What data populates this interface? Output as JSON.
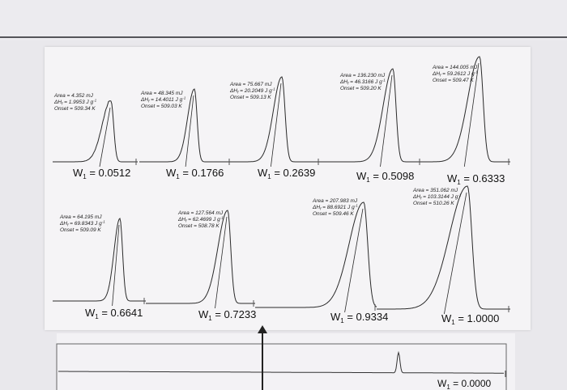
{
  "chart_data": {
    "type": "line",
    "description_units": "DSC heat-flow peaks",
    "panels": [
      {
        "w_label": "W",
        "w_sub": "1",
        "w_value": "= 0.0512",
        "area": "Area = 4.352 mJ",
        "dh": "ΔH",
        "dh_sub": "f",
        "dh_value": " = 1.9953 J g",
        "sup": "-1",
        "onset": "Onset = 509.34 K",
        "peak_height": 0.4,
        "peak_width": 6,
        "skew": 1.8
      },
      {
        "w_label": "W",
        "w_sub": "1",
        "w_value": "= 0.1766",
        "area": "Area = 48.345 mJ",
        "dh": "ΔH",
        "dh_sub": "f",
        "dh_value": " = 14.4011 J g",
        "sup": "-1",
        "onset": "Onset = 509.03 K",
        "peak_height": 0.6,
        "peak_width": 6,
        "skew": 1.4
      },
      {
        "w_label": "W",
        "w_sub": "1",
        "w_value": "= 0.2639",
        "area": "Area = 75.667 mJ",
        "dh": "ΔH",
        "dh_sub": "f",
        "dh_value": " = 20.2049 J g",
        "sup": "-1",
        "onset": "Onset = 509.13 K",
        "peak_height": 0.75,
        "peak_width": 7,
        "skew": 1.5
      },
      {
        "w_label": "W",
        "w_sub": "1",
        "w_value": "= 0.5098",
        "area": "Area = 136.230 mJ",
        "dh": "ΔH",
        "dh_sub": "f",
        "dh_value": " = 46.3166 J g",
        "sup": "-1",
        "onset": "Onset = 509.20 K",
        "peak_height": 0.85,
        "peak_width": 7,
        "skew": 1.7
      },
      {
        "w_label": "W",
        "w_sub": "1",
        "w_value": "= 0.6333",
        "area": "Area = 144.005 mJ",
        "dh": "ΔH",
        "dh_sub": "f",
        "dh_value": " = 59.2612 J g",
        "sup": "-1",
        "onset": "Onset = 509.47 K",
        "peak_height": 0.95,
        "peak_width": 8,
        "skew": 1.8
      },
      {
        "w_label": "W",
        "w_sub": "1",
        "w_value": "= 0.6641",
        "area": "Area = 64.195 mJ",
        "dh": "ΔH",
        "dh_sub": "f",
        "dh_value": " = 69.8343 J g",
        "sup": "-1",
        "onset": "Onset = 509.09 K",
        "peak_height": 0.68,
        "peak_width": 6,
        "skew": 1.2
      },
      {
        "w_label": "W",
        "w_sub": "1",
        "w_value": "= 0.7233",
        "area": "Area = 127.564 mJ",
        "dh": "ΔH",
        "dh_sub": "f",
        "dh_value": " = 62.4699 J g",
        "sup": "-1",
        "onset": "Onset = 508.78 K",
        "peak_height": 0.72,
        "peak_width": 7,
        "skew": 1.7
      },
      {
        "w_label": "W",
        "w_sub": "1",
        "w_value": "= 0.9334",
        "area": "Area = 207.983 mJ",
        "dh": "ΔH",
        "dh_sub": "f",
        "dh_value": " = 88.6921 J g",
        "sup": "-1",
        "onset": "Onset = 509.46 K",
        "peak_height": 0.85,
        "peak_width": 9,
        "skew": 2.0
      },
      {
        "w_label": "W",
        "w_sub": "1",
        "w_value": "= 1.0000",
        "area": "Area = 351.062 mJ",
        "dh": "ΔH",
        "dh_sub": "f",
        "dh_value": " = 103.3144 J g",
        "sup": "-1",
        "onset": "Onset = 510.26 K",
        "peak_height": 0.98,
        "peak_width": 10,
        "skew": 2.2
      }
    ],
    "bottom_panel": {
      "w_label": "W",
      "w_sub": "1",
      "w_value": "= 0.0000"
    }
  },
  "colors": {
    "curve": "#2a2a2a",
    "tick": "#555555"
  }
}
